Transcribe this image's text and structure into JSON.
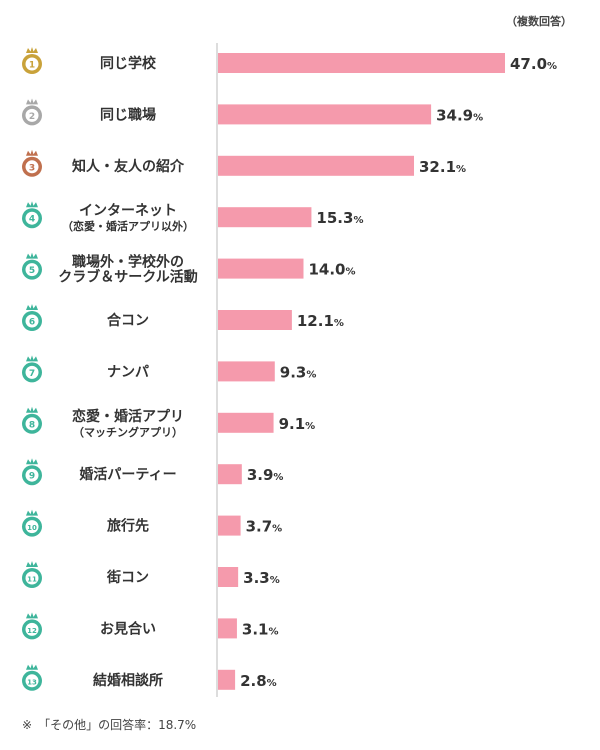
{
  "note": "（複数回答）",
  "footnote": {
    "mark": "※",
    "text": "「その他」の回答率：18.7%"
  },
  "colors": {
    "bar": "#f59aac",
    "gold": "#c9a23a",
    "silver": "#a8a8a8",
    "bronze": "#c0704e",
    "teal": "#3eb59b",
    "axis": "#bbbbbb"
  },
  "chart_data": {
    "type": "bar",
    "orientation": "horizontal",
    "categories": [
      [
        "同じ学校"
      ],
      [
        "同じ職場"
      ],
      [
        "知人・友人の紹介"
      ],
      [
        "インターネット",
        "（恋愛・婚活アプリ以外）"
      ],
      [
        "職場外・学校外の",
        "クラブ＆サークル活動"
      ],
      [
        "合コン"
      ],
      [
        "ナンパ"
      ],
      [
        "恋愛・婚活アプリ",
        "（マッチングアプリ）"
      ],
      [
        "婚活パーティー"
      ],
      [
        "旅行先"
      ],
      [
        "街コン"
      ],
      [
        "お見合い"
      ],
      [
        "結婚相談所"
      ]
    ],
    "ranks": [
      "1",
      "2",
      "3",
      "4",
      "5",
      "6",
      "7",
      "8",
      "9",
      "10",
      "11",
      "12",
      "13"
    ],
    "values": [
      47.0,
      34.9,
      32.1,
      15.3,
      14.0,
      12.1,
      9.3,
      9.1,
      3.9,
      3.7,
      3.3,
      3.1,
      2.8
    ],
    "value_labels": [
      "47.0",
      "34.9",
      "32.1",
      "15.3",
      "14.0",
      "12.1",
      "9.3",
      "9.1",
      "3.9",
      "3.7",
      "3.3",
      "3.1",
      "2.8"
    ],
    "unit": "%",
    "xlim": [
      0,
      47
    ],
    "grid": false,
    "legend": "none"
  }
}
